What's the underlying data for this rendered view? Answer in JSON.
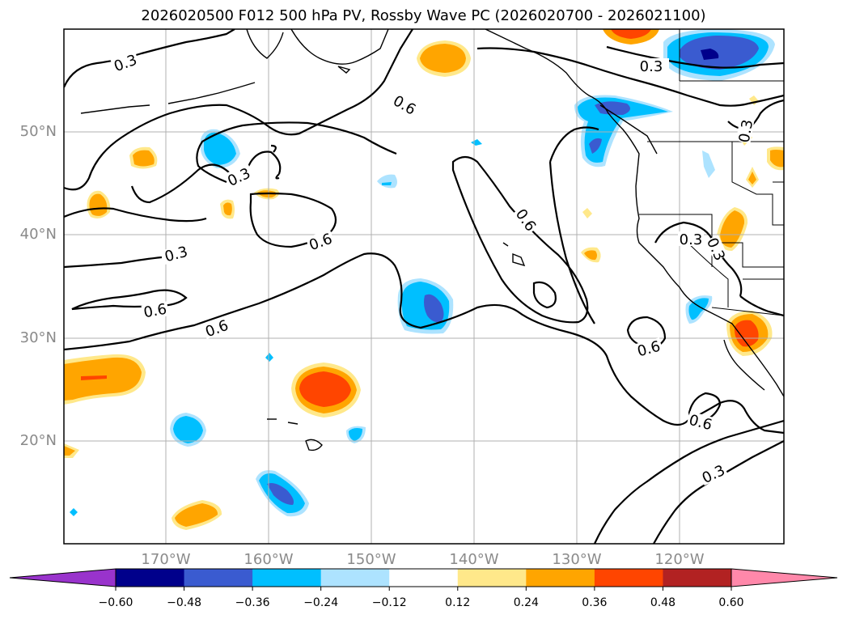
{
  "title": "2026020500 F012 500 hPa PV, Rossby Wave PC (2026020700 - 2026021100)",
  "colors": {
    "frame": "#000000",
    "grid": "#b0b0b0",
    "contour": "#000000",
    "coast": "#000000",
    "axis_label": "#8a8a8a"
  },
  "lat_labels": [
    "50°N",
    "40°N",
    "30°N",
    "20°N"
  ],
  "lon_labels": [
    "170°W",
    "160°W",
    "150°W",
    "140°W",
    "130°W",
    "120°W"
  ],
  "contour_labels": [
    "0.3",
    "0.6",
    "0.6",
    "0.3",
    "0.6",
    "0.3",
    "0.6",
    "0.3",
    "0.3",
    "0.6",
    "0.6",
    "0.3",
    "0.6",
    "0.3",
    "0.3"
  ],
  "colorbar": {
    "ticks": [
      "−0.60",
      "−0.48",
      "−0.36",
      "−0.24",
      "−0.12",
      "0.12",
      "0.24",
      "0.36",
      "0.48",
      "0.60"
    ],
    "under_color": "#9933cc",
    "over_color": "#ff88aa",
    "bins": [
      "#00008b",
      "#3a5bd0",
      "#00bfff",
      "#ade3ff",
      "#ffffff",
      "#ffe88a",
      "#ffa500",
      "#ff4500",
      "#b22222"
    ]
  },
  "fill_colors": {
    "neg1": "#ade3ff",
    "neg2": "#00bfff",
    "neg3": "#3a5bd0",
    "neg4": "#00008b",
    "pos1": "#ffe88a",
    "pos2": "#ffa500",
    "pos3": "#ff4500",
    "pos4": "#b22222"
  }
}
